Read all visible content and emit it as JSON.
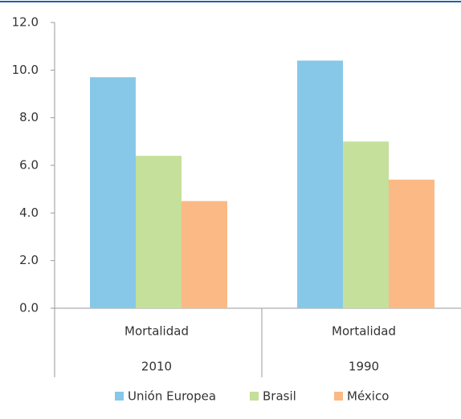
{
  "chart_data": {
    "type": "bar",
    "categories": [
      [
        "Mortalidad",
        "2010"
      ],
      [
        "Mortalidad",
        "1990"
      ]
    ],
    "series": [
      {
        "name": "Unión Europea",
        "color": "#87c8e8",
        "values": [
          9.7,
          10.4
        ]
      },
      {
        "name": "Brasil",
        "color": "#c5e09a",
        "values": [
          6.4,
          7.0
        ]
      },
      {
        "name": "México",
        "color": "#fbb985",
        "values": [
          4.5,
          5.4
        ]
      }
    ],
    "ylim": [
      0,
      12
    ],
    "yticks": [
      {
        "value": 0,
        "label": "0.0"
      },
      {
        "value": 2,
        "label": "2.0"
      },
      {
        "value": 4,
        "label": "4.0"
      },
      {
        "value": 6,
        "label": "6.0"
      },
      {
        "value": 8,
        "label": "8.0"
      },
      {
        "value": 10,
        "label": "10.0"
      },
      {
        "value": 12,
        "label": "12.0"
      }
    ],
    "grid": false,
    "legend": "bottom"
  }
}
